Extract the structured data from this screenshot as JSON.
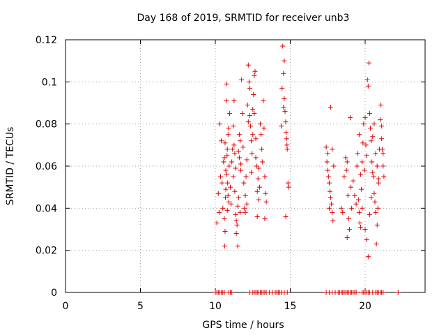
{
  "chart_data": {
    "type": "scatter",
    "title": "Day 168 of 2019, SRMTID for receiver unb3",
    "xlabel": "GPS time / hours",
    "ylabel": "SRMTID / TECUs",
    "xlim": [
      0,
      24
    ],
    "ylim": [
      0,
      0.12
    ],
    "xticks": [
      0,
      5,
      10,
      15,
      20
    ],
    "xtick_labels": [
      "0",
      "5",
      "10",
      "15",
      "20"
    ],
    "yticks": [
      0,
      0.02,
      0.04,
      0.06,
      0.08,
      0.1,
      0.12
    ],
    "ytick_labels": [
      "0",
      "0.02",
      "0.04",
      "0.06",
      "0.08",
      "0.1",
      "0.12"
    ],
    "grid": true,
    "marker": "+",
    "series": [
      {
        "name": "SRMTID",
        "color": "#dd0000",
        "points": [
          [
            10.1,
            0.033
          ],
          [
            10.2,
            0.047
          ],
          [
            10.25,
            0.038
          ],
          [
            10.3,
            0.08
          ],
          [
            10.35,
            0.055
          ],
          [
            10.4,
            0.072
          ],
          [
            10.45,
            0.052
          ],
          [
            10.5,
            0.04
          ],
          [
            10.55,
            0.062
          ],
          [
            10.6,
            0.035
          ],
          [
            10.62,
            0.022
          ],
          [
            10.65,
            0.029
          ],
          [
            10.68,
            0.045
          ],
          [
            10.7,
            0.058
          ],
          [
            10.72,
            0.091
          ],
          [
            10.75,
            0.099
          ],
          [
            10.78,
            0.065
          ],
          [
            10.8,
            0.068
          ],
          [
            10.82,
            0.052
          ],
          [
            10.85,
            0.075
          ],
          [
            10.88,
            0.078
          ],
          [
            10.9,
            0.043
          ],
          [
            10.92,
            0.06
          ],
          [
            10.95,
            0.085
          ],
          [
            10.6,
            0.064
          ],
          [
            10.65,
            0.071
          ],
          [
            10.7,
            0.049
          ],
          [
            10.75,
            0.056
          ],
          [
            10.8,
            0.039
          ],
          [
            10.85,
            0.046
          ],
          [
            11.0,
            0.05
          ],
          [
            11.05,
            0.042
          ],
          [
            11.1,
            0.062
          ],
          [
            11.15,
            0.068
          ],
          [
            11.2,
            0.055
          ],
          [
            11.25,
            0.07
          ],
          [
            11.3,
            0.048
          ],
          [
            11.35,
            0.059
          ],
          [
            11.4,
            0.034
          ],
          [
            11.45,
            0.032
          ],
          [
            11.5,
            0.022
          ],
          [
            11.55,
            0.045
          ],
          [
            11.6,
            0.064
          ],
          [
            11.65,
            0.072
          ],
          [
            11.7,
            0.058
          ],
          [
            11.75,
            0.101
          ],
          [
            11.8,
            0.085
          ],
          [
            11.85,
            0.069
          ],
          [
            11.9,
            0.052
          ],
          [
            11.95,
            0.04
          ],
          [
            11.2,
            0.079
          ],
          [
            11.25,
            0.091
          ],
          [
            11.3,
            0.066
          ],
          [
            11.35,
            0.037
          ],
          [
            11.4,
            0.028
          ],
          [
            11.5,
            0.041
          ],
          [
            11.55,
            0.067
          ],
          [
            11.6,
            0.075
          ],
          [
            11.65,
            0.038
          ],
          [
            11.7,
            0.061
          ],
          [
            12.0,
            0.046
          ],
          [
            12.05,
            0.055
          ],
          [
            12.1,
            0.063
          ],
          [
            12.15,
            0.089
          ],
          [
            12.2,
            0.108
          ],
          [
            12.25,
            0.1
          ],
          [
            12.3,
            0.084
          ],
          [
            12.35,
            0.079
          ],
          [
            12.4,
            0.072
          ],
          [
            12.45,
            0.066
          ],
          [
            12.5,
            0.087
          ],
          [
            12.55,
            0.094
          ],
          [
            12.6,
            0.103
          ],
          [
            12.65,
            0.105
          ],
          [
            12.7,
            0.073
          ],
          [
            12.75,
            0.06
          ],
          [
            12.8,
            0.048
          ],
          [
            12.85,
            0.054
          ],
          [
            12.9,
            0.044
          ],
          [
            12.95,
            0.05
          ],
          [
            12.0,
            0.038
          ],
          [
            12.1,
            0.042
          ],
          [
            12.2,
            0.081
          ],
          [
            12.3,
            0.097
          ],
          [
            12.4,
            0.057
          ],
          [
            12.5,
            0.075
          ],
          [
            12.6,
            0.085
          ],
          [
            12.7,
            0.064
          ],
          [
            12.8,
            0.036
          ],
          [
            12.9,
            0.059
          ],
          [
            13.0,
            0.08
          ],
          [
            13.05,
            0.075
          ],
          [
            13.1,
            0.068
          ],
          [
            13.15,
            0.062
          ],
          [
            13.2,
            0.091
          ],
          [
            13.25,
            0.078
          ],
          [
            13.3,
            0.055
          ],
          [
            13.35,
            0.047
          ],
          [
            13.4,
            0.043
          ],
          [
            13.3,
            0.035
          ],
          [
            14.4,
            0.079
          ],
          [
            14.45,
            0.097
          ],
          [
            14.5,
            0.117
          ],
          [
            14.55,
            0.104
          ],
          [
            14.6,
            0.092
          ],
          [
            14.65,
            0.086
          ],
          [
            14.7,
            0.081
          ],
          [
            14.72,
            0.076
          ],
          [
            14.75,
            0.073
          ],
          [
            14.78,
            0.07
          ],
          [
            14.8,
            0.068
          ],
          [
            14.85,
            0.052
          ],
          [
            14.9,
            0.05
          ],
          [
            14.7,
            0.036
          ],
          [
            14.6,
            0.11
          ],
          [
            14.55,
            0.088
          ],
          [
            17.4,
            0.069
          ],
          [
            17.45,
            0.062
          ],
          [
            17.5,
            0.058
          ],
          [
            17.55,
            0.055
          ],
          [
            17.6,
            0.052
          ],
          [
            17.65,
            0.048
          ],
          [
            17.7,
            0.045
          ],
          [
            17.75,
            0.042
          ],
          [
            17.8,
            0.038
          ],
          [
            17.85,
            0.034
          ],
          [
            17.5,
            0.066
          ],
          [
            17.6,
            0.04
          ],
          [
            17.7,
            0.088
          ],
          [
            17.8,
            0.068
          ],
          [
            17.9,
            0.06
          ],
          [
            18.4,
            0.04
          ],
          [
            18.5,
            0.038
          ],
          [
            18.6,
            0.055
          ],
          [
            18.7,
            0.064
          ],
          [
            18.75,
            0.058
          ],
          [
            18.8,
            0.062
          ],
          [
            18.85,
            0.046
          ],
          [
            18.9,
            0.035
          ],
          [
            18.95,
            0.03
          ],
          [
            18.8,
            0.026
          ],
          [
            19.0,
            0.083
          ],
          [
            19.05,
            0.05
          ],
          [
            19.1,
            0.04
          ],
          [
            19.2,
            0.053
          ],
          [
            19.3,
            0.046
          ],
          [
            19.4,
            0.042
          ],
          [
            19.45,
            0.06
          ],
          [
            19.5,
            0.066
          ],
          [
            19.55,
            0.044
          ],
          [
            19.6,
            0.038
          ],
          [
            19.65,
            0.033
          ],
          [
            19.7,
            0.031
          ],
          [
            19.75,
            0.049
          ],
          [
            19.8,
            0.062
          ],
          [
            19.85,
            0.071
          ],
          [
            19.9,
            0.08
          ],
          [
            19.95,
            0.058
          ],
          [
            19.6,
            0.075
          ],
          [
            19.7,
            0.056
          ],
          [
            19.8,
            0.04
          ],
          [
            20.0,
            0.083
          ],
          [
            20.05,
            0.07
          ],
          [
            20.1,
            0.065
          ],
          [
            20.15,
            0.101
          ],
          [
            20.2,
            0.098
          ],
          [
            20.25,
            0.109
          ],
          [
            20.3,
            0.085
          ],
          [
            20.35,
            0.078
          ],
          [
            20.4,
            0.072
          ],
          [
            20.45,
            0.062
          ],
          [
            20.5,
            0.057
          ],
          [
            20.55,
            0.055
          ],
          [
            20.6,
            0.047
          ],
          [
            20.65,
            0.043
          ],
          [
            20.7,
            0.038
          ],
          [
            20.75,
            0.023
          ],
          [
            20.8,
            0.032
          ],
          [
            20.85,
            0.04
          ],
          [
            20.9,
            0.052
          ],
          [
            20.95,
            0.068
          ],
          [
            20.0,
            0.03
          ],
          [
            20.1,
            0.025
          ],
          [
            20.2,
            0.017
          ],
          [
            20.3,
            0.037
          ],
          [
            20.4,
            0.045
          ],
          [
            20.5,
            0.074
          ],
          [
            20.6,
            0.08
          ],
          [
            20.7,
            0.066
          ],
          [
            20.8,
            0.06
          ],
          [
            20.9,
            0.054
          ],
          [
            21.0,
            0.082
          ],
          [
            21.05,
            0.089
          ],
          [
            21.1,
            0.073
          ],
          [
            21.15,
            0.068
          ],
          [
            21.2,
            0.06
          ],
          [
            21.25,
            0.055
          ],
          [
            21.1,
            0.079
          ],
          [
            21.2,
            0.066
          ]
        ],
        "zero_points": [
          10.0,
          10.1,
          10.2,
          10.3,
          10.4,
          10.5,
          10.6,
          10.9,
          11.0,
          11.1,
          12.3,
          12.5,
          12.6,
          12.7,
          12.8,
          12.9,
          13.0,
          13.1,
          13.2,
          13.3,
          13.4,
          13.6,
          13.8,
          14.0,
          14.1,
          14.2,
          14.3,
          14.4,
          14.6,
          14.8,
          17.4,
          17.6,
          17.8,
          18.0,
          18.2,
          18.3,
          18.4,
          18.5,
          18.6,
          18.7,
          18.8,
          18.9,
          19.0,
          19.1,
          19.2,
          19.3,
          19.4,
          19.8,
          19.9,
          20.0,
          20.1,
          20.2,
          20.3,
          20.5,
          20.7,
          20.8,
          20.9,
          21.0,
          21.1,
          21.2,
          22.2
        ]
      }
    ]
  }
}
